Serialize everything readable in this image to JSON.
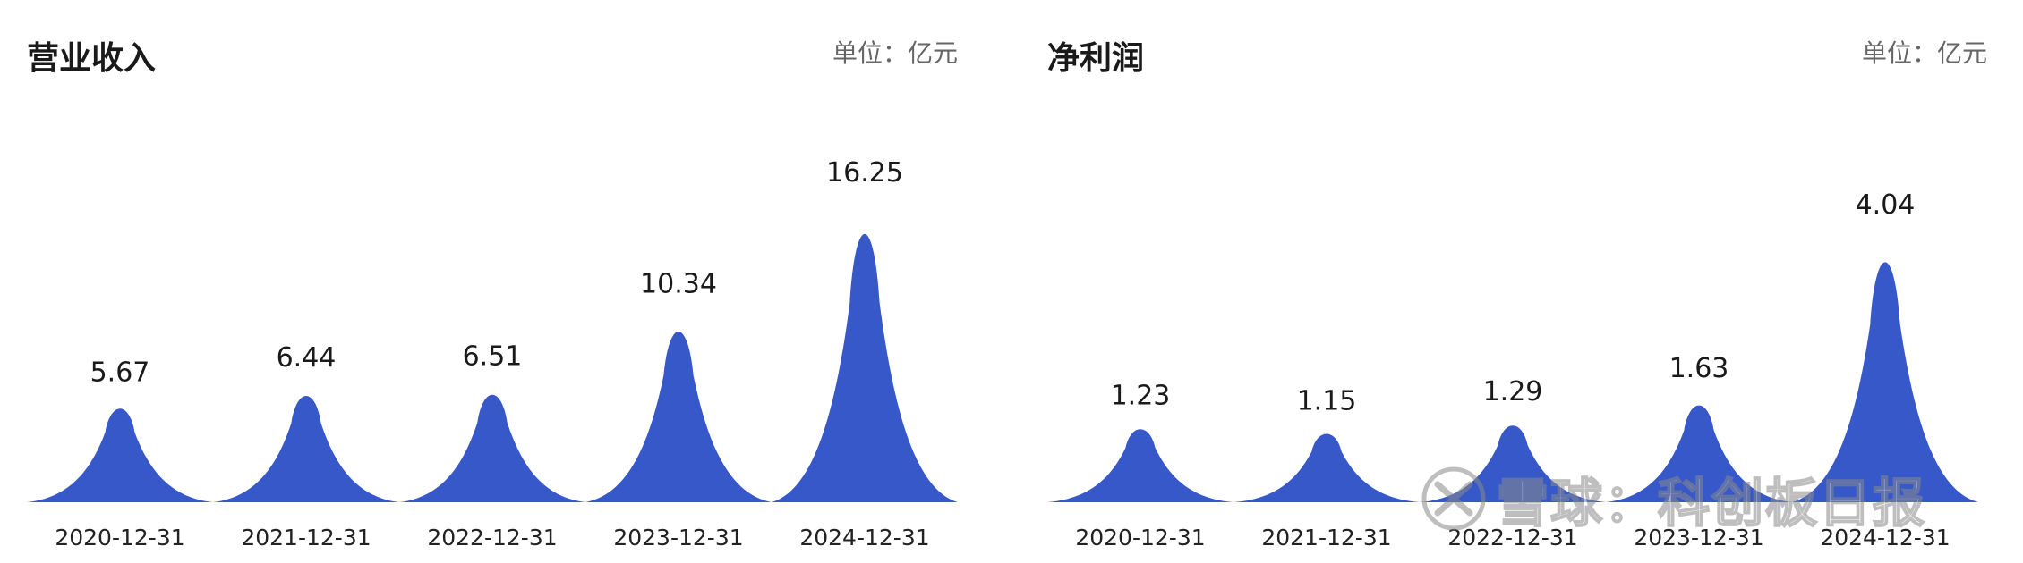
{
  "colors": {
    "bar": "#3758c8",
    "text": "#1a1a1a",
    "unit": "#666666"
  },
  "watermark": {
    "text": "雪球：科创板日报",
    "icon": "snowball-logo-icon"
  },
  "chart_data": [
    {
      "type": "bar",
      "title": "营业收入",
      "unit_label": "单位：亿元",
      "categories": [
        "2020-12-31",
        "2021-12-31",
        "2022-12-31",
        "2023-12-31",
        "2024-12-31"
      ],
      "values": [
        5.67,
        6.44,
        6.51,
        10.34,
        16.25
      ],
      "value_labels": [
        "5.67",
        "6.44",
        "6.51",
        "10.34",
        "16.25"
      ],
      "ylim": [
        0,
        16.25
      ],
      "grid": false,
      "legend": "none"
    },
    {
      "type": "bar",
      "title": "净利润",
      "unit_label": "单位：亿元",
      "categories": [
        "2020-12-31",
        "2021-12-31",
        "2022-12-31",
        "2023-12-31",
        "2024-12-31"
      ],
      "values": [
        1.23,
        1.15,
        1.29,
        1.63,
        4.04
      ],
      "value_labels": [
        "1.23",
        "1.15",
        "1.29",
        "1.63",
        "4.04"
      ],
      "ylim": [
        0,
        4.04
      ],
      "grid": false,
      "legend": "none"
    }
  ]
}
